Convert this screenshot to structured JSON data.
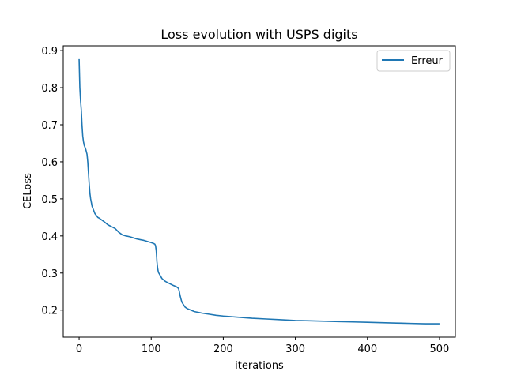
{
  "chart_data": {
    "type": "line",
    "title": "Loss evolution with USPS digits",
    "xlabel": "iterations",
    "ylabel": "CELoss",
    "xlim": [
      -22,
      522
    ],
    "ylim": [
      0.127,
      0.913
    ],
    "xticks": [
      0,
      100,
      200,
      300,
      400,
      500
    ],
    "yticks": [
      0.2,
      0.3,
      0.4,
      0.5,
      0.6,
      0.7,
      0.8,
      0.9
    ],
    "grid": false,
    "legend_position": "top-right",
    "series": [
      {
        "name": "Erreur",
        "color": "#1f77b4",
        "x": [
          0,
          1,
          2,
          3,
          4,
          5,
          6,
          7,
          8,
          9,
          10,
          11,
          12,
          13,
          14,
          15,
          16,
          17,
          18,
          19,
          20,
          21,
          22,
          24,
          26,
          28,
          30,
          35,
          40,
          45,
          50,
          55,
          60,
          65,
          70,
          75,
          80,
          85,
          90,
          95,
          100,
          103,
          105,
          106,
          107,
          108,
          109,
          110,
          112,
          115,
          120,
          125,
          130,
          135,
          137,
          138,
          139,
          140,
          141,
          142,
          143,
          145,
          147,
          150,
          155,
          160,
          170,
          180,
          190,
          200,
          220,
          240,
          260,
          280,
          300,
          320,
          340,
          360,
          380,
          400,
          420,
          440,
          460,
          480,
          500
        ],
        "y": [
          0.877,
          0.8,
          0.765,
          0.74,
          0.7,
          0.67,
          0.655,
          0.645,
          0.64,
          0.635,
          0.628,
          0.62,
          0.6,
          0.57,
          0.54,
          0.515,
          0.5,
          0.49,
          0.48,
          0.475,
          0.47,
          0.465,
          0.46,
          0.455,
          0.45,
          0.448,
          0.445,
          0.438,
          0.43,
          0.425,
          0.42,
          0.41,
          0.403,
          0.4,
          0.398,
          0.395,
          0.392,
          0.39,
          0.388,
          0.385,
          0.382,
          0.38,
          0.378,
          0.374,
          0.36,
          0.33,
          0.312,
          0.302,
          0.295,
          0.285,
          0.277,
          0.272,
          0.267,
          0.263,
          0.26,
          0.258,
          0.25,
          0.24,
          0.232,
          0.225,
          0.22,
          0.214,
          0.208,
          0.204,
          0.2,
          0.196,
          0.192,
          0.189,
          0.186,
          0.184,
          0.181,
          0.178,
          0.176,
          0.174,
          0.172,
          0.171,
          0.17,
          0.169,
          0.168,
          0.167,
          0.166,
          0.165,
          0.164,
          0.163,
          0.163
        ]
      }
    ]
  }
}
